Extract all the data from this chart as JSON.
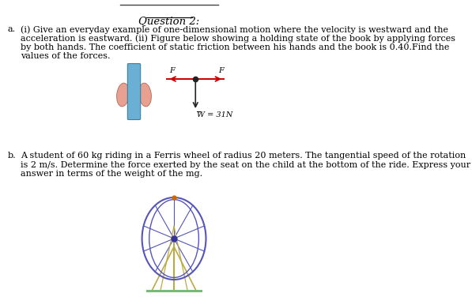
{
  "title": "Question 2:",
  "bg_color": "#ffffff",
  "part_a_label": "a.",
  "part_a_lines": [
    "(i) Give an everyday example of one-dimensional motion where the velocity is westward and the",
    "acceleration is eastward. (ii) Figure below showing a holding state of the book by applying forces",
    "by both hands. The coefficient of static friction between his hands and the book is 0.40.Find the",
    "values of the forces."
  ],
  "part_b_label": "b.",
  "part_b_lines": [
    "A student of 60 kg riding in a Ferris wheel of radius 20 meters. The tangential speed of the rotation",
    "is 2 m/s. Determine the force exerted by the seat on the child at the bottom of the ride. Express your",
    "answer in terms of the weight of the mg."
  ],
  "weight_label": "W = 31N",
  "force_label_left": "F",
  "force_label_right": "F",
  "book_color": "#6ab0d4",
  "hand_color": "#e8a090",
  "arrow_color": "#cc0000",
  "force_diagram_dot_color": "#222222",
  "weight_arrow_color": "#222222",
  "ferris_wheel_circle_color": "#5555bb",
  "ferris_wheel_spoke_color": "#5555bb",
  "ferris_wheel_hub_color": "#333399",
  "ferris_wheel_support_color": "#bbaa44",
  "ferris_wheel_ground_color": "#77bb77",
  "ferris_wheel_top_marker_color": "#cc6600",
  "header_line_color": "#444444",
  "font_size_title": 9.5,
  "font_size_body": 8.0,
  "font_size_label": 7.0
}
